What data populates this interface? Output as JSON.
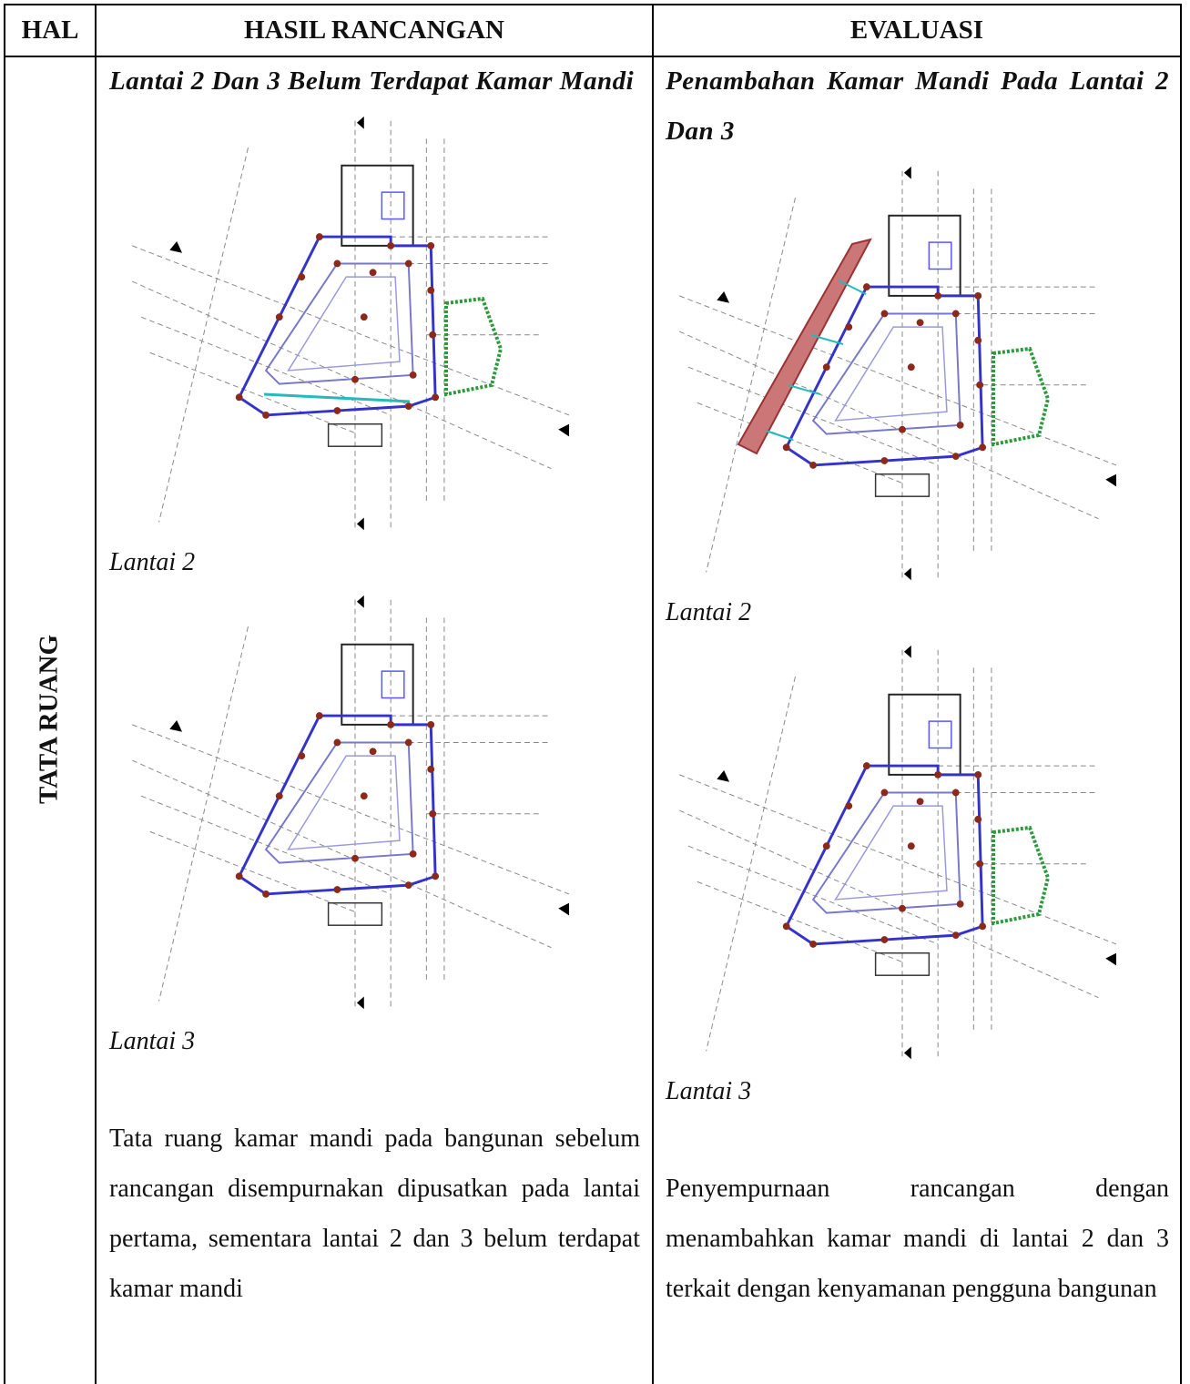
{
  "table": {
    "headers": [
      "HAL",
      "HASIL RANCANGAN",
      "EVALUASI"
    ],
    "rows": [
      {
        "hal": "TATA RUANG",
        "before": {
          "heading": "Lantai 2 Dan 3 Belum Terdapat Kamar Mandi",
          "captions": [
            "Lantai 2",
            "Lantai 3"
          ],
          "description": "Tata ruang kamar mandi pada bangunan sebelum rancangan disempurnakan dipusatkan pada lantai pertama, sementara lantai 2 dan 3 belum terdapat kamar mandi"
        },
        "after": {
          "heading": "Penambahan Kamar Mandi Pada Lantai 2 Dan 3",
          "captions": [
            "Lantai 2",
            "Lantai 3"
          ],
          "description": "Penyempurnaan rancangan dengan menambahkan kamar mandi di lantai 2 dan 3 terkait dengan kenyamanan pengguna bangunan"
        }
      }
    ]
  }
}
